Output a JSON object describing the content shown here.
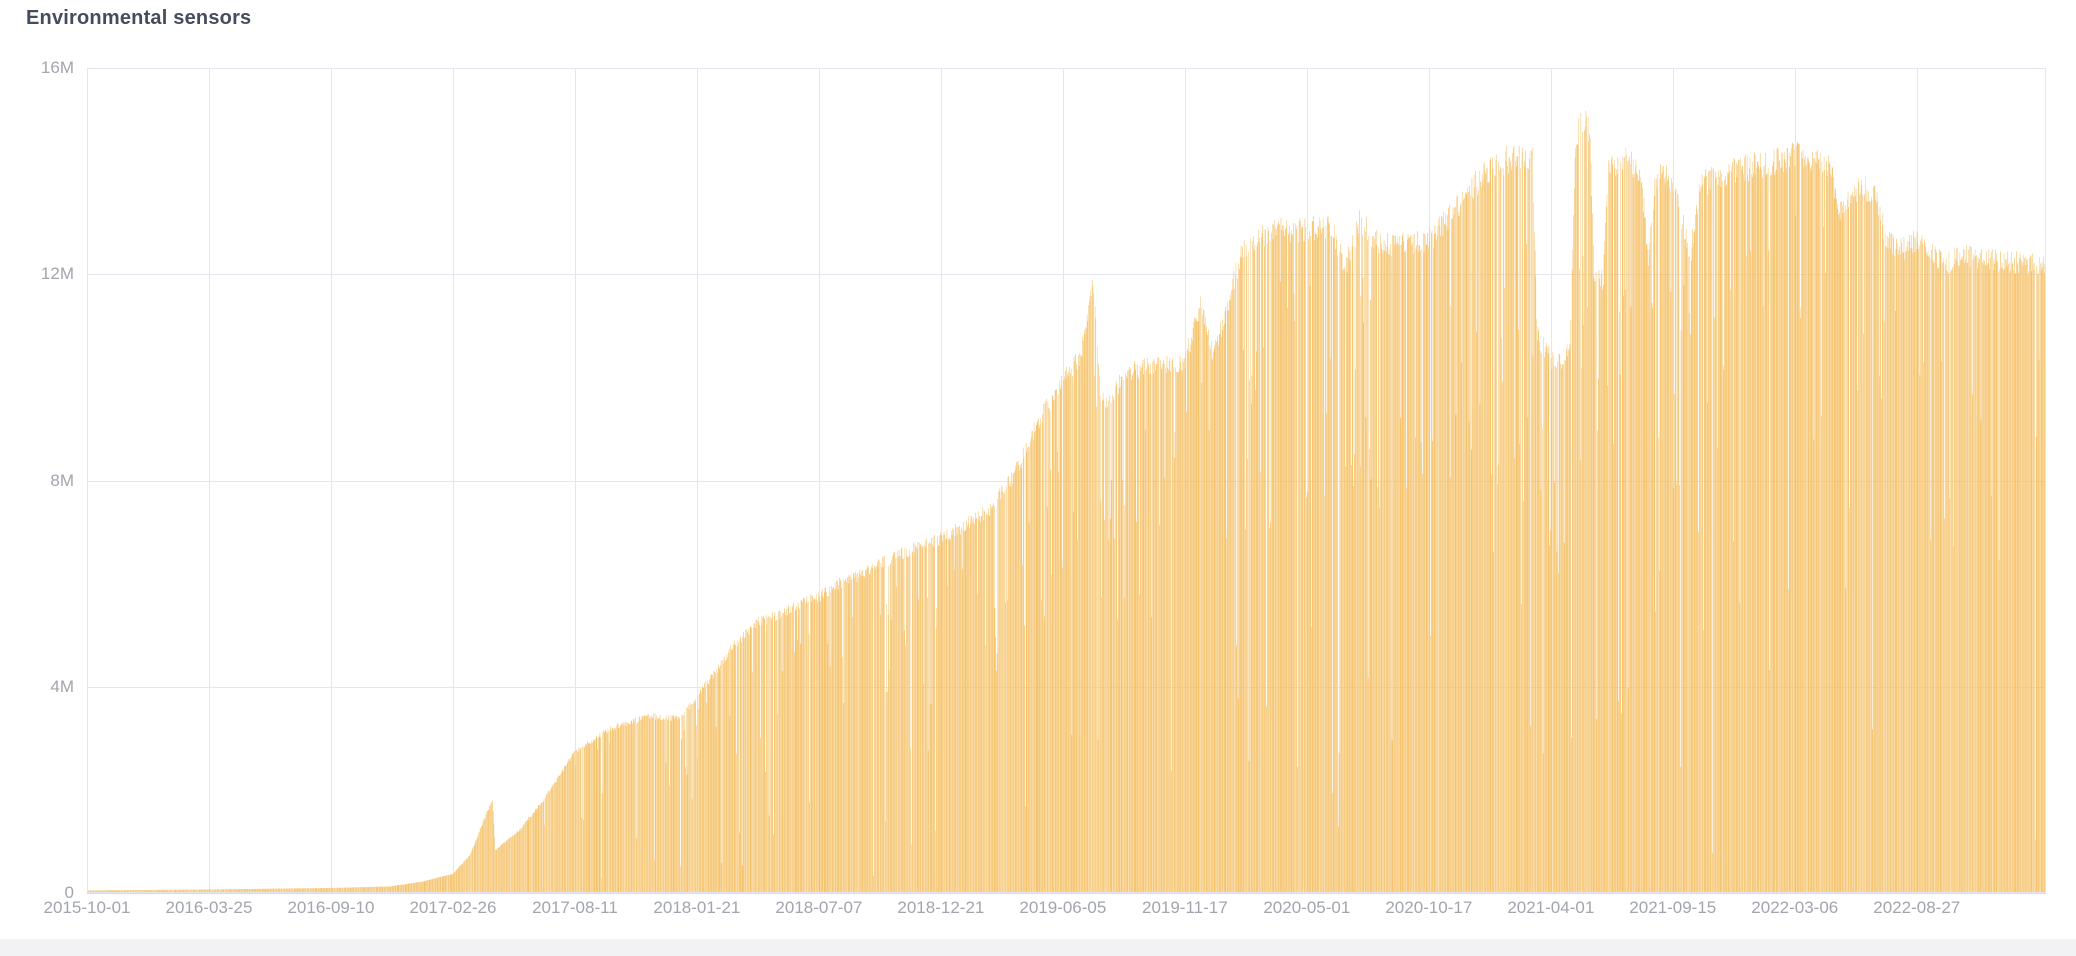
{
  "chart_data": {
    "type": "bar",
    "title": "Environmental sensors",
    "unit": "M",
    "grid": true,
    "legend": "none",
    "ylim": [
      0,
      16000000
    ],
    "y_ticks": [
      "0",
      "4M",
      "8M",
      "12M",
      "16M"
    ],
    "y_tick_values": [
      0,
      4000000,
      8000000,
      12000000,
      16000000
    ],
    "x_ticks": [
      "2015-10-01",
      "2016-03-25",
      "2016-09-10",
      "2017-02-26",
      "2017-08-11",
      "2018-01-21",
      "2018-07-07",
      "2018-12-21",
      "2019-06-05",
      "2019-11-17",
      "2020-05-01",
      "2020-10-17",
      "2021-04-01",
      "2021-09-15",
      "2022-03-06",
      "2022-08-27"
    ],
    "x_tick_interval_days": 168,
    "x_range_days": 2698,
    "bar_granularity": "one bar per day",
    "colors": {
      "bar": "#f6bd5e",
      "bar_light": "#fbd690",
      "bar_dark": "#efa943",
      "grid": "#e4e5f0",
      "axis_line": "#d8dae4",
      "tick_text": "#a2a5ae",
      "title_text": "#454d5d",
      "background": "#ffffff",
      "panel_strip": "#f2f2f5"
    },
    "series": [
      {
        "name": "Environmental sensors",
        "description": "Daily values in millions; envelope points [day_offset_from_2015-10-01, value_in_millions]; daily bars fluctuate just below the envelope with frequent deep narrow dips (thin white slivers).",
        "envelope_day_valueM": [
          [
            0,
            0.05
          ],
          [
            168,
            0.07
          ],
          [
            336,
            0.1
          ],
          [
            417,
            0.13
          ],
          [
            459,
            0.22
          ],
          [
            504,
            0.38
          ],
          [
            527,
            0.75
          ],
          [
            548,
            1.5
          ],
          [
            558,
            1.85
          ],
          [
            562,
            0.85
          ],
          [
            596,
            1.25
          ],
          [
            631,
            1.9
          ],
          [
            672,
            2.8
          ],
          [
            720,
            3.25
          ],
          [
            775,
            3.5
          ],
          [
            817,
            3.45
          ],
          [
            840,
            3.9
          ],
          [
            862,
            4.3
          ],
          [
            890,
            4.9
          ],
          [
            923,
            5.35
          ],
          [
            954,
            5.5
          ],
          [
            986,
            5.75
          ],
          [
            1008,
            5.85
          ],
          [
            1033,
            6.1
          ],
          [
            1065,
            6.3
          ],
          [
            1096,
            6.55
          ],
          [
            1129,
            6.75
          ],
          [
            1151,
            6.9
          ],
          [
            1176,
            7.0
          ],
          [
            1202,
            7.2
          ],
          [
            1243,
            7.6
          ],
          [
            1278,
            8.3
          ],
          [
            1312,
            9.4
          ],
          [
            1344,
            10.1
          ],
          [
            1368,
            10.6
          ],
          [
            1385,
            12.0
          ],
          [
            1395,
            10.0
          ],
          [
            1406,
            9.6
          ],
          [
            1429,
            10.3
          ],
          [
            1464,
            10.4
          ],
          [
            1512,
            10.5
          ],
          [
            1533,
            11.6
          ],
          [
            1551,
            10.6
          ],
          [
            1588,
            12.6
          ],
          [
            1629,
            13.1
          ],
          [
            1680,
            13.1
          ],
          [
            1712,
            13.2
          ],
          [
            1733,
            12.4
          ],
          [
            1753,
            13.3
          ],
          [
            1781,
            12.8
          ],
          [
            1848,
            12.9
          ],
          [
            1877,
            13.4
          ],
          [
            1911,
            14.0
          ],
          [
            1939,
            14.4
          ],
          [
            1973,
            14.6
          ],
          [
            1990,
            14.5
          ],
          [
            1997,
            11.0
          ],
          [
            2023,
            10.4
          ],
          [
            2042,
            10.8
          ],
          [
            2050,
            14.9
          ],
          [
            2062,
            15.3
          ],
          [
            2070,
            14.9
          ],
          [
            2075,
            12.2
          ],
          [
            2088,
            12.1
          ],
          [
            2095,
            14.4
          ],
          [
            2118,
            14.5
          ],
          [
            2139,
            14.3
          ],
          [
            2150,
            12.6
          ],
          [
            2161,
            14.2
          ],
          [
            2184,
            14.1
          ],
          [
            2208,
            12.6
          ],
          [
            2221,
            14.0
          ],
          [
            2276,
            14.3
          ],
          [
            2332,
            14.5
          ],
          [
            2352,
            14.6
          ],
          [
            2401,
            14.4
          ],
          [
            2414,
            13.4
          ],
          [
            2435,
            13.9
          ],
          [
            2462,
            13.9
          ],
          [
            2476,
            13.0
          ],
          [
            2497,
            12.7
          ],
          [
            2520,
            12.9
          ],
          [
            2559,
            12.4
          ],
          [
            2580,
            12.6
          ],
          [
            2635,
            12.5
          ],
          [
            2698,
            12.4
          ]
        ]
      }
    ]
  }
}
